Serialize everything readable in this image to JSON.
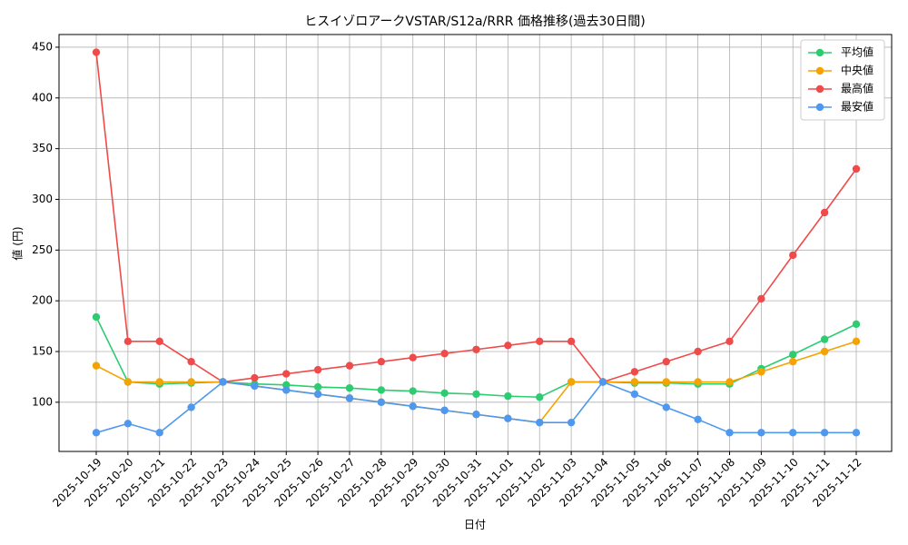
{
  "chart_data": {
    "type": "line",
    "title": "ヒスイゾロアークVSTAR/S12a/RRR 価格推移(過去30日間)",
    "x_label": "日付",
    "y_label": "値 (円)",
    "categories": [
      "2025-10-19",
      "2025-10-20",
      "2025-10-21",
      "2025-10-22",
      "2025-10-23",
      "2025-10-24",
      "2025-10-25",
      "2025-10-26",
      "2025-10-27",
      "2025-10-28",
      "2025-10-29",
      "2025-10-30",
      "2025-10-31",
      "2025-11-01",
      "2025-11-02",
      "2025-11-03",
      "2025-11-04",
      "2025-11-05",
      "2025-11-06",
      "2025-11-07",
      "2025-11-08",
      "2025-11-09",
      "2025-11-10",
      "2025-11-11",
      "2025-11-12"
    ],
    "series": [
      {
        "name": "平均値",
        "color": "#2ecc71",
        "values": [
          184,
          120,
          118,
          119,
          120,
          118,
          117,
          115,
          114,
          112,
          111,
          109,
          108,
          106,
          105,
          120,
          120,
          119,
          119,
          118,
          118,
          133,
          147,
          162,
          177
        ]
      },
      {
        "name": "中央値",
        "color": "#f5a300",
        "values": [
          136,
          120,
          120,
          120,
          120,
          116,
          112,
          108,
          104,
          100,
          96,
          92,
          88,
          84,
          80,
          120,
          120,
          120,
          120,
          120,
          120,
          130,
          140,
          150,
          160
        ]
      },
      {
        "name": "最高値",
        "color": "#ef4b4b",
        "values": [
          445,
          160,
          160,
          140,
          120,
          124,
          128,
          132,
          136,
          140,
          144,
          148,
          152,
          156,
          160,
          160,
          120,
          130,
          140,
          150,
          160,
          202,
          245,
          287,
          330
        ]
      },
      {
        "name": "最安値",
        "color": "#4f98ef",
        "values": [
          70,
          79,
          70,
          95,
          120,
          116,
          112,
          108,
          104,
          100,
          96,
          92,
          88,
          84,
          80,
          80,
          120,
          108,
          95,
          83,
          70,
          70,
          70,
          70,
          70
        ]
      }
    ],
    "ylim": [
      51.5,
      462.5
    ],
    "yticks": [
      100,
      150,
      200,
      250,
      300,
      350,
      400,
      450
    ],
    "grid": true,
    "legend": "upper right"
  }
}
